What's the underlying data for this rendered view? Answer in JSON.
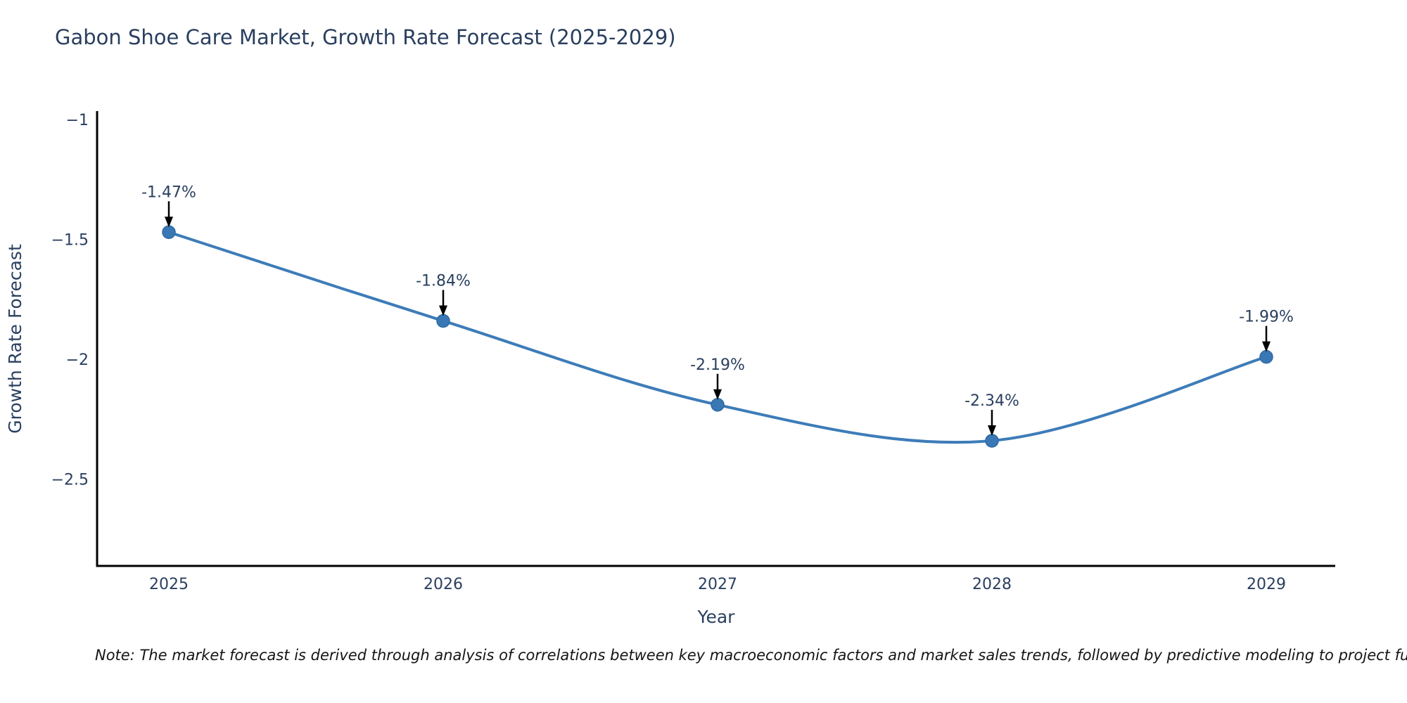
{
  "title": "Gabon Shoe Care Market, Growth Rate Forecast (2025-2029)",
  "note": "Note: The market forecast is derived through analysis of correlations between key macroeconomic factors and market sales trends, followed by predictive modeling to project future sa",
  "chart_data": {
    "type": "line",
    "title": "Gabon Shoe Care Market, Growth Rate Forecast (2025-2029)",
    "categories": [
      "2025",
      "2026",
      "2027",
      "2028",
      "2029"
    ],
    "values": [
      -1.47,
      -1.84,
      -2.19,
      -2.34,
      -1.99
    ],
    "point_labels": [
      "-1.47%",
      "-1.84%",
      "-2.19%",
      "-2.34%",
      "-1.99%"
    ],
    "xlabel": "Year",
    "ylabel": "Growth Rate Forecast",
    "yticks": [
      -1,
      -1.5,
      -2,
      -2.5
    ],
    "ytick_labels": [
      "−1",
      "−1.5",
      "−2",
      "−2.5"
    ],
    "ylim": [
      -2.86,
      -0.97
    ],
    "grid": false,
    "legend": "none",
    "line_shape": "spline",
    "line_color": "#3d7cb8",
    "marker_color": "#3a78b5",
    "marker_edge_color": "#2f6ba3",
    "annotation_arrow_color": "#000000",
    "text_color": "#2a3f5f",
    "axis_color": "#000000",
    "background_color": "#ffffff"
  }
}
